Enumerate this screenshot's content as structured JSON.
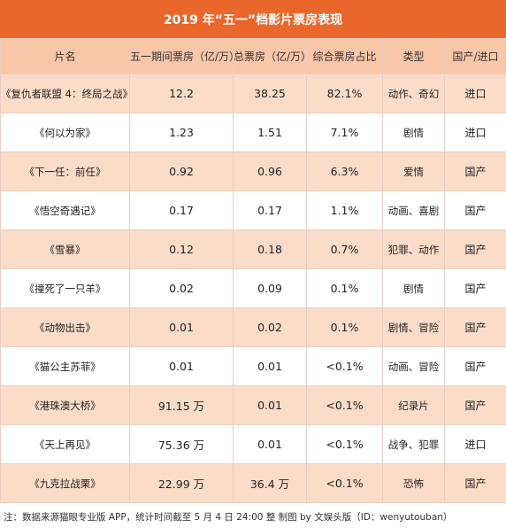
{
  "title": "2019 年“五一”档影片票房表现",
  "headers": [
    "片名",
    "五一期间票房（亿/万）",
    "总票房（亿/万）",
    "综合票房占比",
    "类型",
    "国产/进口"
  ],
  "rows": [
    {
      "film": "《复仇者联盟 4：终局之战》",
      "holiday": "12.2",
      "total": "38.25",
      "share": "82.1%",
      "genre": "动作、奇幻",
      "origin": "进口"
    },
    {
      "film": "《何以为家》",
      "holiday": "1.23",
      "total": "1.51",
      "share": "7.1%",
      "genre": "剧情",
      "origin": "进口"
    },
    {
      "film": "《下一任：前任》",
      "holiday": "0.92",
      "total": "0.96",
      "share": "6.3%",
      "genre": "爱情",
      "origin": "国产"
    },
    {
      "film": "《悟空奇遇记》",
      "holiday": "0.17",
      "total": "0.17",
      "share": "1.1%",
      "genre": "动画、喜剧",
      "origin": "国产"
    },
    {
      "film": "《雪暴》",
      "holiday": "0.12",
      "total": "0.18",
      "share": "0.7%",
      "genre": "犯罪、动作",
      "origin": "国产"
    },
    {
      "film": "《撞死了一只羊》",
      "holiday": "0.02",
      "total": "0.09",
      "share": "0.1%",
      "genre": "剧情",
      "origin": "国产"
    },
    {
      "film": "《动物出击》",
      "holiday": "0.01",
      "total": "0.02",
      "share": "0.1%",
      "genre": "剧情、冒险",
      "origin": "国产"
    },
    {
      "film": "《猫公主苏菲》",
      "holiday": "0.01",
      "total": "0.01",
      "share": "<0.1%",
      "genre": "动画、冒险",
      "origin": "国产"
    },
    {
      "film": "《港珠澳大桥》",
      "holiday": "91.15 万",
      "total": "0.01",
      "share": "<0.1%",
      "genre": "纪录片",
      "origin": "国产"
    },
    {
      "film": "《天上再见》",
      "holiday": "75.36 万",
      "total": "0.01",
      "share": "<0.1%",
      "genre": "战争、犯罪",
      "origin": "进口"
    },
    {
      "film": "《九克拉战栗》",
      "holiday": "22.99 万",
      "total": "36.4 万",
      "share": "<0.1%",
      "genre": "恐怖",
      "origin": "国产"
    }
  ],
  "footnote": "注：数据来源猫眼专业版 APP，统计时间截至 5 月 4 日 24:00 整     制图 by 文娱头版（ID：wenyutouban）"
}
